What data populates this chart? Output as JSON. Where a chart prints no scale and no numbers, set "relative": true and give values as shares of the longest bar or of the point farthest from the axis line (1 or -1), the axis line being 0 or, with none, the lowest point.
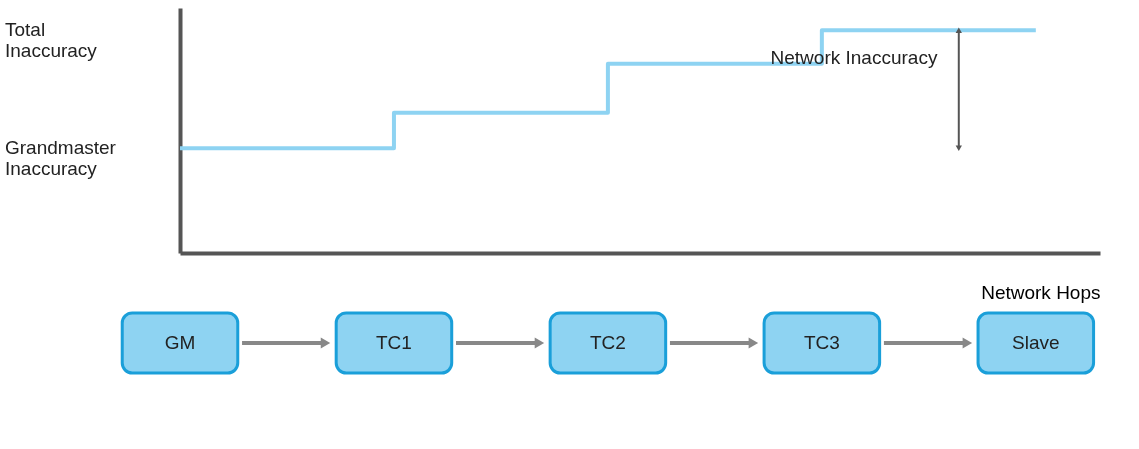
{
  "chart_data": {
    "type": "step",
    "relative": true,
    "categories": [
      "GM",
      "TC1",
      "TC2",
      "TC3",
      "Slave"
    ],
    "values": [
      0.47,
      0.63,
      0.85,
      1,
      1
    ],
    "color": "#8ed3f2",
    "xlabel": "Network Hops",
    "annotations": [
      "Total Inaccuracy",
      "Grandmaster Inaccuracy",
      "Network Inaccuracy"
    ],
    "grid": false
  }
}
